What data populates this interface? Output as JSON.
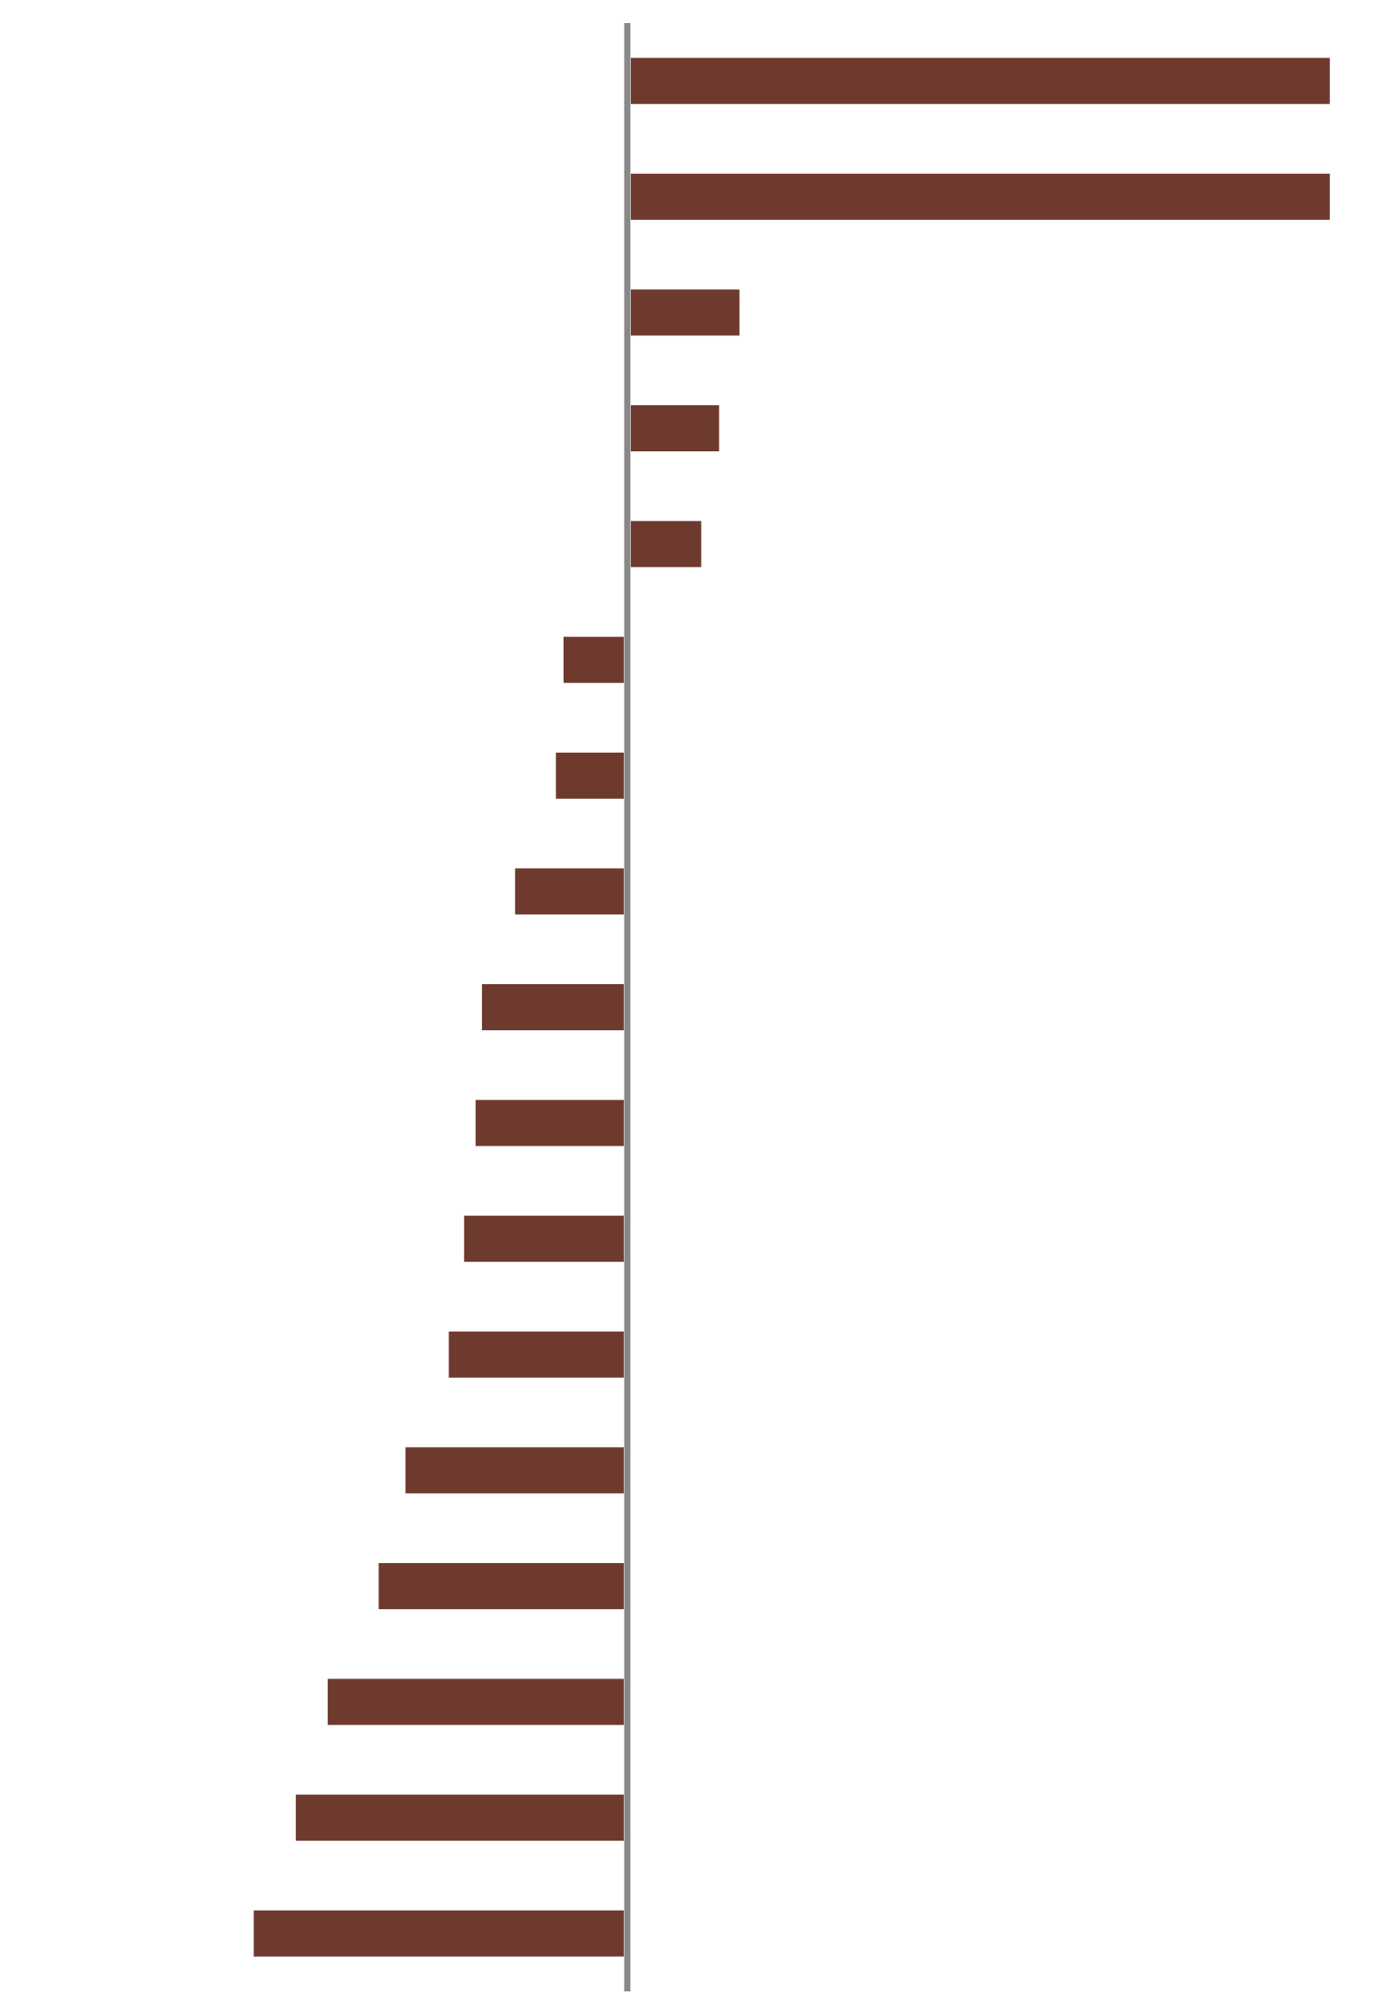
{
  "chart_data": {
    "type": "barh",
    "categories": [
      null,
      null,
      null,
      null,
      null,
      null,
      null,
      null,
      null,
      null,
      null,
      null,
      null,
      null,
      null,
      null,
      null
    ],
    "values": [
      551,
      551,
      88,
      72,
      58,
      -50,
      -56,
      -88,
      -114,
      -119,
      -128,
      -140,
      -174,
      -195,
      -235,
      -260,
      -293
    ],
    "color": "#6e3a2e",
    "xlim": [
      -492,
      588
    ]
  }
}
